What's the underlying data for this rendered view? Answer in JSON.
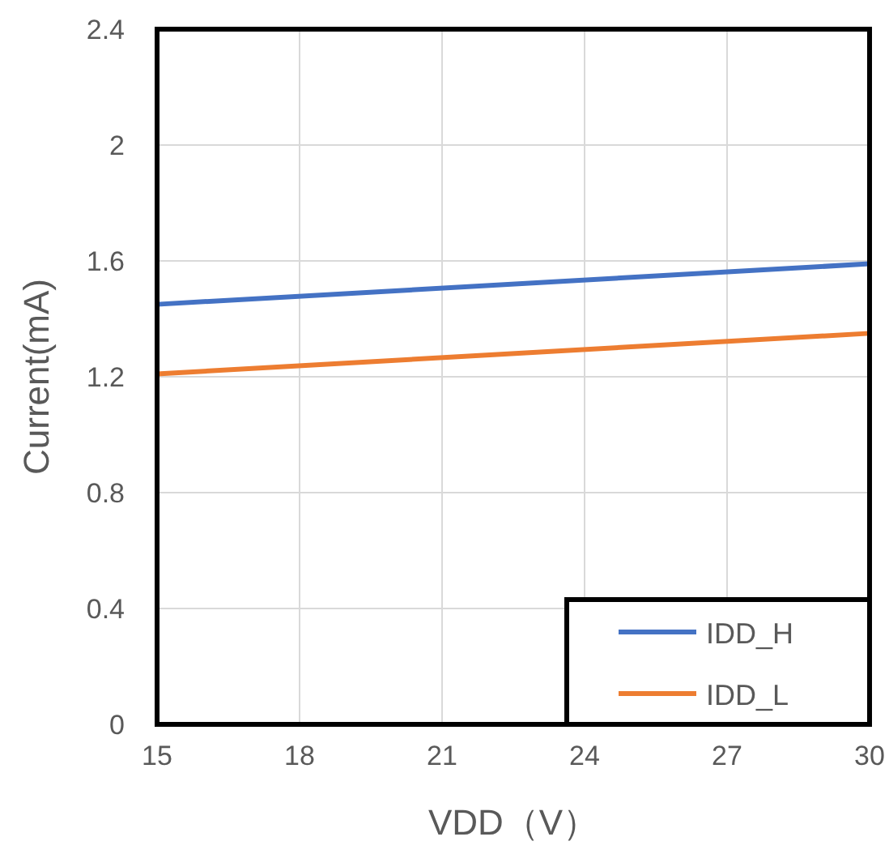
{
  "chart_data": {
    "type": "line",
    "xlabel": "VDD（V）",
    "ylabel": "Current(mA)",
    "x": [
      15,
      30
    ],
    "series": [
      {
        "name": "IDD_H",
        "color": "#4472c4",
        "values": [
          1.45,
          1.59
        ]
      },
      {
        "name": "IDD_L",
        "color": "#ed7d31",
        "values": [
          1.21,
          1.35
        ]
      }
    ],
    "xlim": [
      15,
      30
    ],
    "xticks": [
      15,
      18,
      21,
      24,
      27,
      30
    ],
    "ylim": [
      0,
      2.4
    ],
    "yticks": [
      0,
      0.4,
      0.8,
      1.2,
      1.6,
      2,
      2.4
    ],
    "grid": true,
    "legend": "bottom right",
    "marker": "none",
    "line_style": "solid"
  }
}
